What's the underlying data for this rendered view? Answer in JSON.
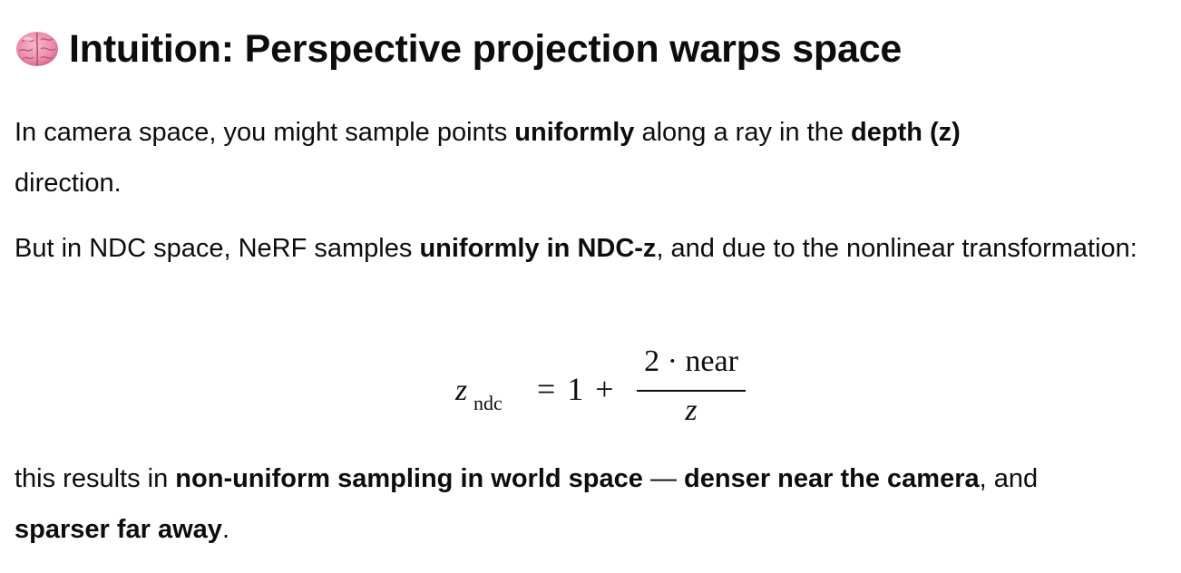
{
  "heading": {
    "icon": "brain-icon",
    "text": "Intuition: Perspective projection warps space"
  },
  "paragraphs": {
    "p1": {
      "t1": "In camera space, you might sample points ",
      "b1": "uniformly",
      "t2": " along a ray in the ",
      "b2": "depth (z)",
      "t3": " direction."
    },
    "p2": {
      "t1": "But in NDC space, NeRF samples ",
      "b1": "uniformly in NDC-z",
      "t2": ", and due to the nonlinear transformation:"
    },
    "p3": {
      "b1": "non-uniform sampling in world space",
      "t0": "this results in ",
      "t1": " — ",
      "b2": "denser near the camera",
      "t2": ", and ",
      "b3": "sparser far away",
      "t3": "."
    }
  },
  "equation": {
    "lhs_var": "z",
    "lhs_sub": "ndc",
    "rhs_prefix": "= 1 +",
    "numerator": "2 · near",
    "denominator": "z"
  },
  "colors": {
    "text": "#0d0d0d",
    "background": "#ffffff"
  }
}
